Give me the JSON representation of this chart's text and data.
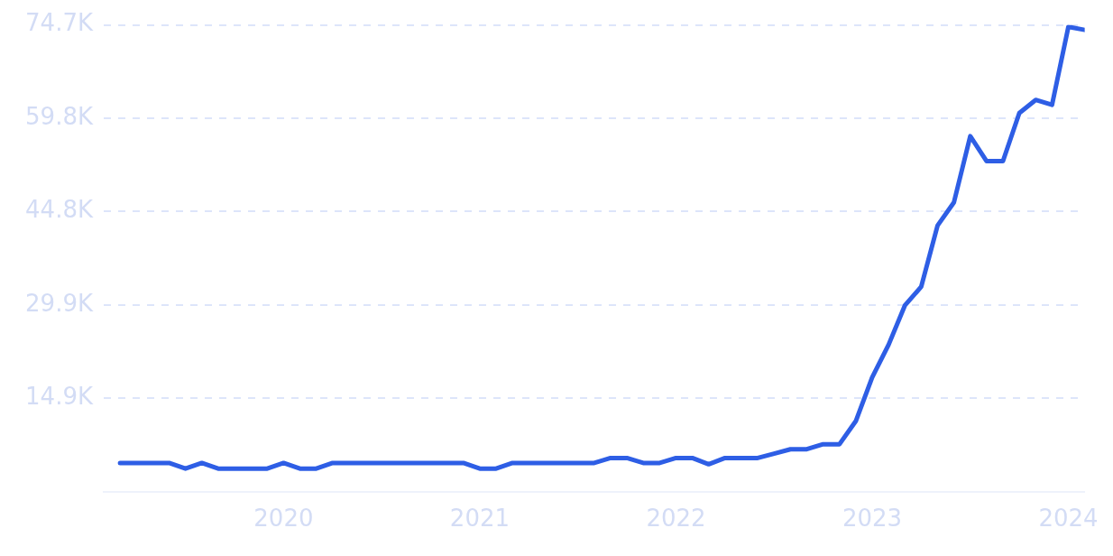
{
  "chart_data": {
    "type": "line",
    "x": [
      "2019-03",
      "2019-04",
      "2019-05",
      "2019-06",
      "2019-07",
      "2019-08",
      "2019-09",
      "2019-10",
      "2019-11",
      "2019-12",
      "2020-01",
      "2020-02",
      "2020-03",
      "2020-04",
      "2020-05",
      "2020-06",
      "2020-07",
      "2020-08",
      "2020-09",
      "2020-10",
      "2020-11",
      "2020-12",
      "2021-01",
      "2021-02",
      "2021-03",
      "2021-04",
      "2021-05",
      "2021-06",
      "2021-07",
      "2021-08",
      "2021-09",
      "2021-10",
      "2021-11",
      "2021-12",
      "2022-01",
      "2022-02",
      "2022-03",
      "2022-04",
      "2022-05",
      "2022-06",
      "2022-07",
      "2022-08",
      "2022-09",
      "2022-10",
      "2022-11",
      "2022-12",
      "2023-01",
      "2023-02",
      "2023-03",
      "2023-04",
      "2023-05",
      "2023-06",
      "2023-07",
      "2023-08",
      "2023-09",
      "2023-10",
      "2023-11",
      "2023-12",
      "2024-01",
      "2024-02"
    ],
    "series": [
      {
        "color": "#2e5ee5",
        "values": [
          4600,
          4600,
          4600,
          4600,
          3700,
          4600,
          3700,
          3700,
          3700,
          3700,
          4600,
          3700,
          3700,
          4600,
          4600,
          4600,
          4600,
          4600,
          4600,
          4600,
          4600,
          4600,
          3700,
          3700,
          4600,
          4600,
          4600,
          4600,
          4600,
          4600,
          5400,
          5400,
          4600,
          4600,
          5400,
          5400,
          4400,
          5400,
          5400,
          5400,
          6100,
          6800,
          6800,
          7600,
          7600,
          11300,
          18300,
          23500,
          29800,
          32800,
          42600,
          46300,
          56900,
          52900,
          52900,
          60600,
          62700,
          61900,
          74400,
          73900
        ]
      }
    ],
    "xlim": [
      "2019-02",
      "2024-02"
    ],
    "xticks": [
      "2020",
      "2021",
      "2022",
      "2023",
      "2024"
    ],
    "ylim": [
      0,
      74700
    ],
    "yticks": [
      {
        "value": 14940,
        "label": "14.9K"
      },
      {
        "value": 29880,
        "label": "29.9K"
      },
      {
        "value": 44820,
        "label": "44.8K"
      },
      {
        "value": 59760,
        "label": "59.8K"
      },
      {
        "value": 74700,
        "label": "74.7K"
      }
    ],
    "grid": "y",
    "marker": "none",
    "line_style": "solid",
    "legend": false
  }
}
